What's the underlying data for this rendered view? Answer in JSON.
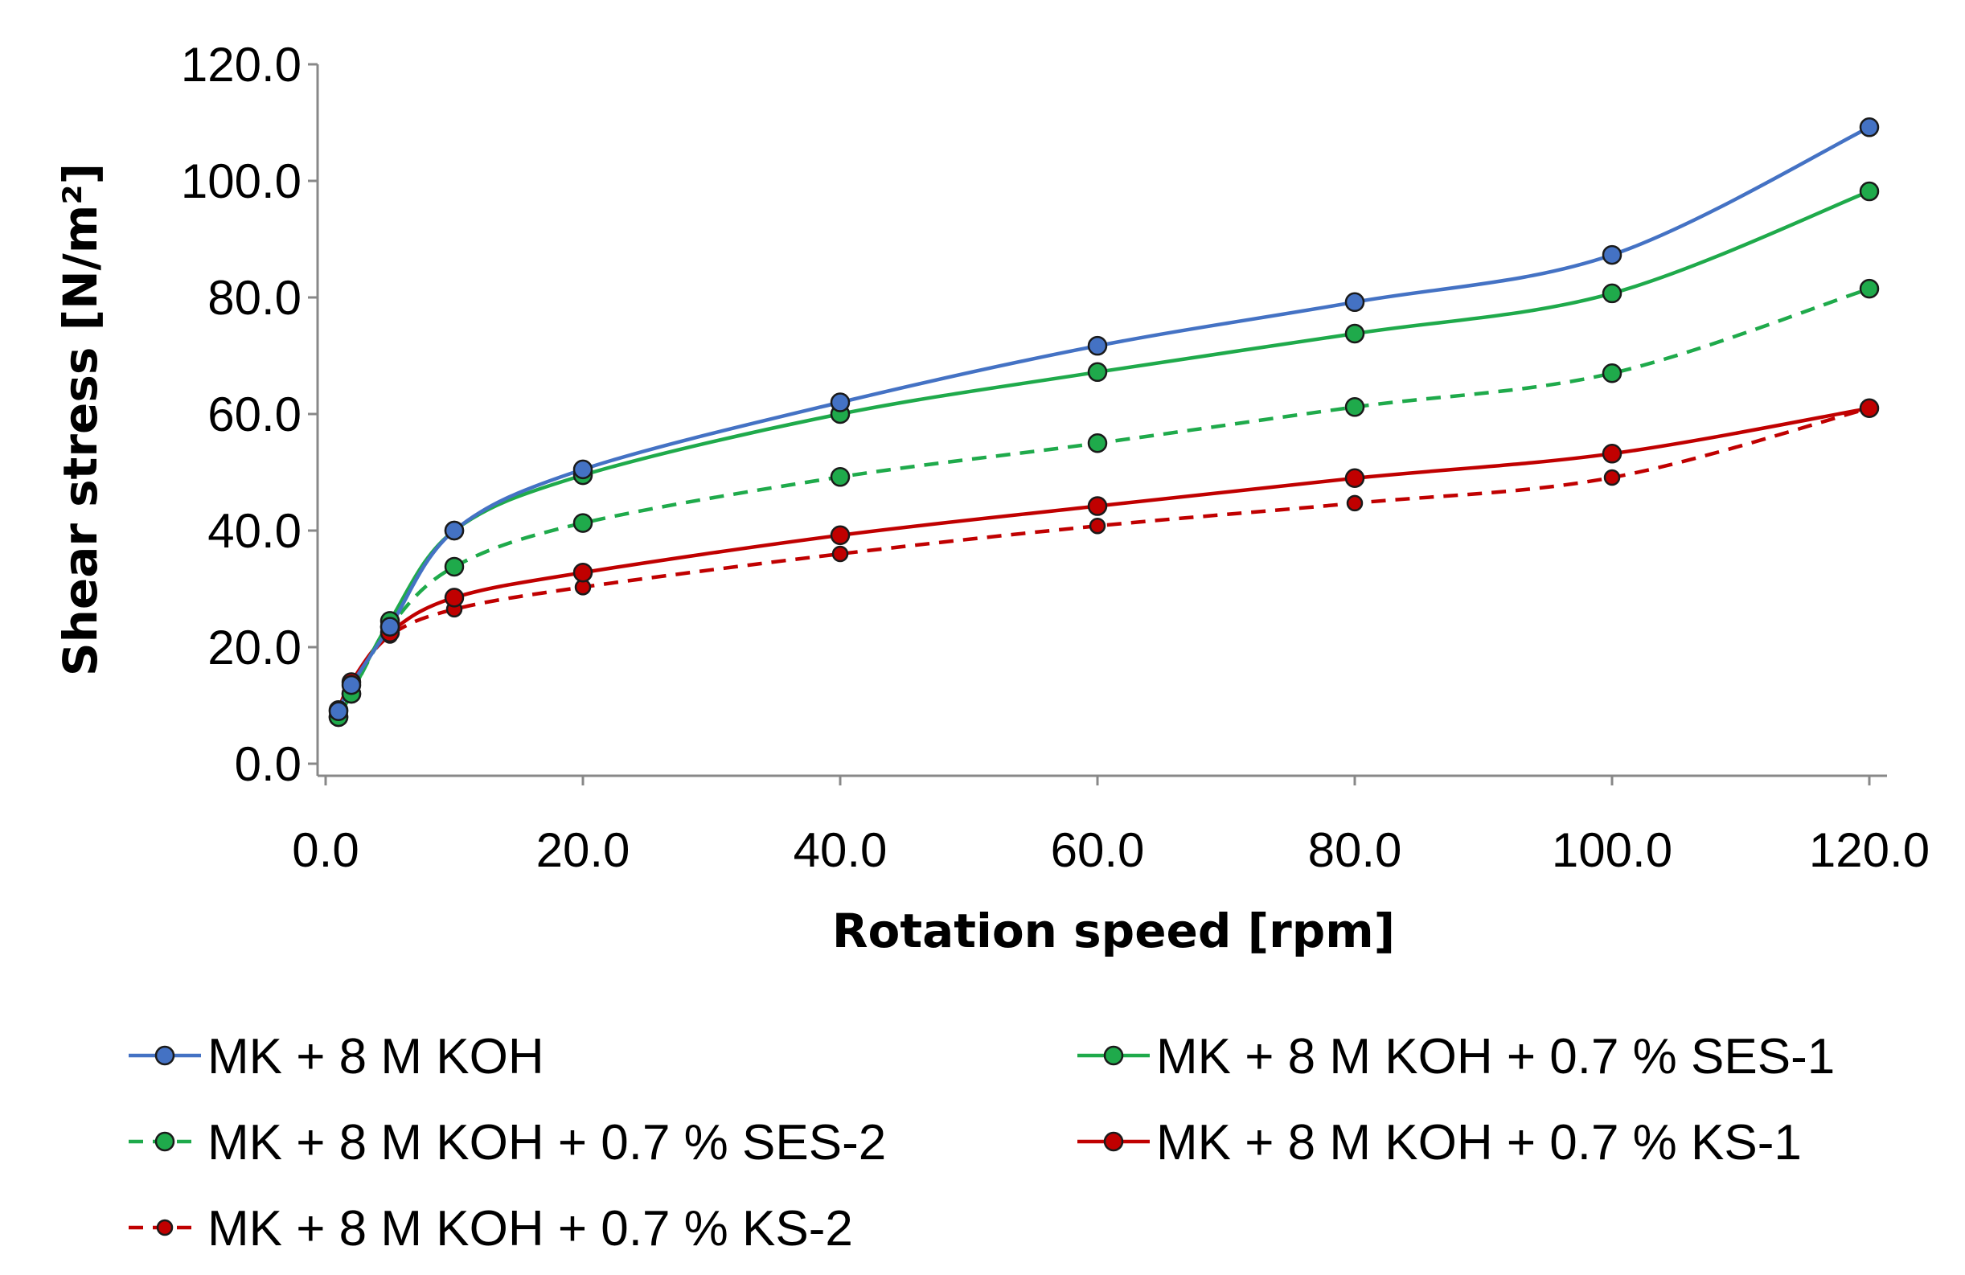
{
  "chart_data": {
    "type": "line",
    "title": "",
    "xlabel": "Rotation speed [rpm]",
    "ylabel": "Shear stress [N/m²]",
    "xlim": [
      0,
      120
    ],
    "ylim": [
      0,
      120
    ],
    "x_ticks": [
      "0.0",
      "20.0",
      "40.0",
      "60.0",
      "80.0",
      "100.0",
      "120.0"
    ],
    "y_ticks": [
      "0.0",
      "20.0",
      "40.0",
      "60.0",
      "80.0",
      "100.0",
      "120.0"
    ],
    "grid": false,
    "legend_position": "bottom",
    "x": [
      1,
      2,
      5,
      10,
      20,
      40,
      60,
      80,
      100,
      120
    ],
    "series": [
      {
        "name": "MK + 8 M KOH",
        "color": "#4472C4",
        "dash": "solid",
        "values": [
          9.0,
          13.5,
          23.5,
          40.0,
          50.5,
          62.0,
          71.7,
          79.2,
          87.3,
          109.2
        ]
      },
      {
        "name": "MK + 8 M KOH + 0.7 % SES-1",
        "color": "#1FAA4B",
        "dash": "solid",
        "values": [
          8.0,
          12.0,
          24.5,
          40.0,
          49.5,
          60.0,
          67.2,
          73.8,
          80.7,
          98.2
        ]
      },
      {
        "name": "MK + 8 M KOH + 0.7 % SES-2",
        "color": "#1FAA4B",
        "dash": "dashed",
        "values": [
          8.0,
          12.0,
          23.5,
          33.8,
          41.3,
          49.2,
          55.0,
          61.2,
          67.0,
          81.5
        ]
      },
      {
        "name": "MK + 8 M KOH + 0.7 % KS-1",
        "color": "#C00000",
        "dash": "solid",
        "values": [
          9.2,
          14.0,
          22.5,
          28.5,
          32.8,
          39.2,
          44.2,
          49.0,
          53.2,
          61.0
        ]
      },
      {
        "name": "MK + 8 M KOH + 0.7 % KS-2",
        "color": "#C00000",
        "dash": "dashed",
        "values": [
          9.2,
          14.0,
          22.0,
          26.5,
          30.3,
          36.0,
          40.8,
          44.7,
          49.1,
          61.0
        ]
      }
    ]
  }
}
